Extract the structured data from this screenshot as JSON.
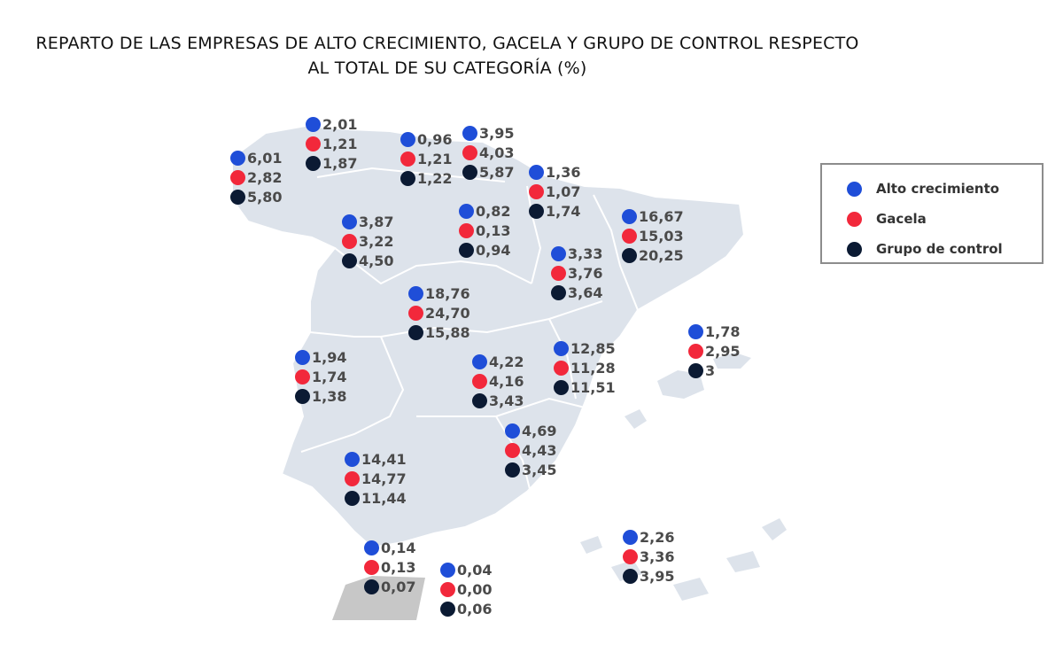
{
  "title": {
    "line1": "REPARTO DE LAS EMPRESAS DE ALTO CRECIMIENTO, GACELA Y GRUPO DE CONTROL RESPECTO",
    "line2": "AL TOTAL DE SU CATEGORÍA (%)"
  },
  "colors": {
    "alto_crecimiento": "#1f4ed8",
    "gacela": "#f2283b",
    "grupo_control": "#0b1a33",
    "land": "#dde3eb",
    "border": "#ffffff",
    "morocco": "#c7c7c7"
  },
  "legend": [
    {
      "label": "Alto crecimiento",
      "color": "#1f4ed8"
    },
    {
      "label": "Gacela",
      "color": "#f2283b"
    },
    {
      "label": "Grupo de control",
      "color": "#0b1a33"
    }
  ],
  "regions": [
    {
      "id": "galicia",
      "values": [
        "6,01",
        "2,82",
        "5,80"
      ]
    },
    {
      "id": "asturias",
      "values": [
        "2,01",
        "1,21",
        "1,87"
      ]
    },
    {
      "id": "cantabria",
      "values": [
        "0,96",
        "1,21",
        "1,22"
      ]
    },
    {
      "id": "pais-vasco",
      "values": [
        "3,95",
        "4,03",
        "5,87"
      ]
    },
    {
      "id": "navarra",
      "values": [
        "1,36",
        "1,07",
        "1,74"
      ]
    },
    {
      "id": "la-rioja",
      "values": [
        "0,82",
        "0,13",
        "0,94"
      ]
    },
    {
      "id": "castilla-leon",
      "values": [
        "3,87",
        "3,22",
        "4,50"
      ]
    },
    {
      "id": "aragon",
      "values": [
        "3,33",
        "3,76",
        "3,64"
      ]
    },
    {
      "id": "cataluna",
      "values": [
        "16,67",
        "15,03",
        "20,25"
      ]
    },
    {
      "id": "madrid",
      "values": [
        "18,76",
        "24,70",
        "15,88"
      ]
    },
    {
      "id": "extremadura",
      "values": [
        "1,94",
        "1,74",
        "1,38"
      ]
    },
    {
      "id": "castilla-la-mancha",
      "values": [
        "4,22",
        "4,16",
        "3,43"
      ]
    },
    {
      "id": "comunidad-valenciana",
      "values": [
        "12,85",
        "11,28",
        "11,51"
      ]
    },
    {
      "id": "baleares",
      "values": [
        "1,78",
        "2,95",
        "3"
      ]
    },
    {
      "id": "murcia",
      "values": [
        "4,69",
        "4,43",
        "3,45"
      ]
    },
    {
      "id": "andalucia",
      "values": [
        "14,41",
        "14,77",
        "11,44"
      ]
    },
    {
      "id": "ceuta",
      "values": [
        "0,14",
        "0,13",
        "0,07"
      ]
    },
    {
      "id": "melilla",
      "values": [
        "0,04",
        "0,00",
        "0,06"
      ]
    },
    {
      "id": "canarias",
      "values": [
        "2,26",
        "3,36",
        "3,95"
      ]
    }
  ]
}
